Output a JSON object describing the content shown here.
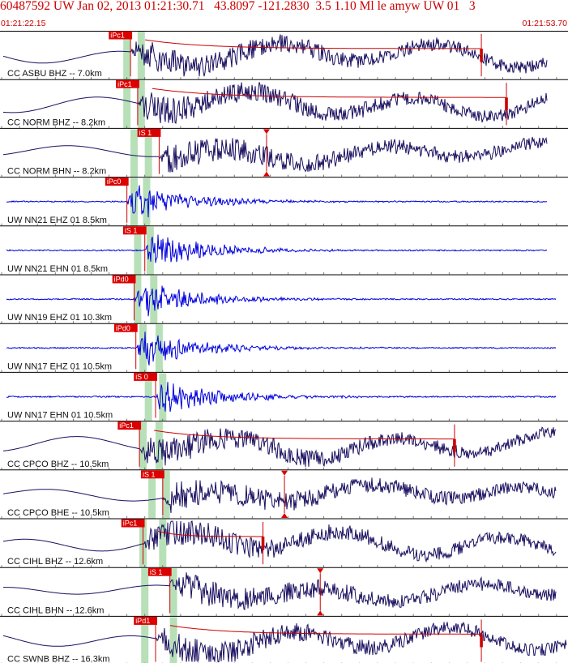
{
  "header": {
    "title": "60487592 UW Jan 02, 2013 01:21:30.71   43.8097 -121.2830  3.5 1.10 Ml le amyw UW 01   3",
    "start_time": "01:21:22.15",
    "end_time": "01:21:53.70"
  },
  "colors": {
    "header_text": "#cc0000",
    "cc_trace": "#1a1060",
    "uw_trace": "#0000dd",
    "pick_flag": "#dd0000",
    "pick_line": "#cc0000",
    "envelope": "#cc0000",
    "window_band": "#b8e0b8",
    "divider": "#000000",
    "tick": "#555555"
  },
  "chart_data": {
    "type": "line",
    "title": "60487592 UW Jan 02, 2013 01:21:30.71   43.8097 -121.2830  3.5 1.10 Ml le amyw UW 01   3",
    "x_start": "01:21:22.15",
    "x_end": "01:21:53.70",
    "duration_s": 31.55,
    "series": [
      {
        "name": "CC ASBU BHZ -- 7.0km",
        "network": "CC",
        "style": "lp",
        "pick": "iPc1",
        "pick_s": 7.2,
        "wave_end_s": 30.5,
        "band1_s": 7.0,
        "band2_s": 7.8,
        "coda_s": 26.8
      },
      {
        "name": "CC NORM BHZ -- 8.2km",
        "network": "CC",
        "style": "lp",
        "pick": "iPc1",
        "pick_s": 7.6,
        "wave_end_s": 30.5,
        "band1_s": 7.0,
        "band2_s": 7.8,
        "coda_s": 28.2
      },
      {
        "name": "CC NORM BHN -- 8.2km",
        "network": "CC",
        "style": "s",
        "pick": "iS 1",
        "pick_s": 8.8,
        "wave_end_s": 30.5,
        "band1_s": 7.4,
        "band2_s": 8.2,
        "amp_s": 14.8
      },
      {
        "name": "UW NN21 EHZ 01 8.5km",
        "network": "UW",
        "style": "hf",
        "pick": "iPc0",
        "pick_s": 7.0,
        "wave_end_s": 30.5,
        "band1_s": 7.4,
        "band2_s": 8.1
      },
      {
        "name": "UW NN21 EHN 01 8.5km",
        "network": "UW",
        "style": "hf",
        "pick": "iS 1",
        "pick_s": 8.0,
        "wave_end_s": 30.5,
        "band1_s": 7.6,
        "band2_s": 8.3
      },
      {
        "name": "UW NN19 EHZ 01 10.3km",
        "network": "UW",
        "style": "hf",
        "pick": "iPd0",
        "pick_s": 7.4,
        "wave_end_s": 31.0,
        "band1_s": 7.6,
        "band2_s": 8.5
      },
      {
        "name": "UW NN17 EHZ 01 10.5km",
        "network": "UW",
        "style": "hf",
        "pick": "iPd0",
        "pick_s": 7.5,
        "wave_end_s": 31.0,
        "band1_s": 7.9,
        "band2_s": 8.8
      },
      {
        "name": "UW NN17 EHN 01 10.5km",
        "network": "UW",
        "style": "hf",
        "pick": "iS 0",
        "pick_s": 8.6,
        "wave_end_s": 31.0,
        "band1_s": 8.2,
        "band2_s": 9.0
      },
      {
        "name": "CC CPCO BHZ -- 10.5km",
        "network": "CC",
        "style": "lp",
        "pick": "iPc1",
        "pick_s": 7.7,
        "wave_end_s": 31.0,
        "band1_s": 7.9,
        "band2_s": 8.8,
        "coda_s": 25.3
      },
      {
        "name": "CC CPCO BHE -- 10.5km",
        "network": "CC",
        "style": "s",
        "pick": "iS 1",
        "pick_s": 9.0,
        "wave_end_s": 31.0,
        "band1_s": 8.4,
        "band2_s": 9.2,
        "amp_s": 15.8
      },
      {
        "name": "CC CIHL BHZ -- 12.6km",
        "network": "CC",
        "style": "lp",
        "pick": "iPc1",
        "pick_s": 7.9,
        "wave_end_s": 31.0,
        "band1_s": 7.9,
        "band2_s": 9.0,
        "coda_s": 14.6
      },
      {
        "name": "CC CIHL BHN -- 12.6km",
        "network": "CC",
        "style": "s",
        "pick": "iS 1",
        "pick_s": 9.4,
        "wave_end_s": 31.0,
        "band1_s": 8.0,
        "band2_s": 9.6,
        "amp_s": 17.8
      },
      {
        "name": "CC SWNB BHZ -- 16.3km",
        "network": "CC",
        "style": "lp",
        "pick": "iPd1",
        "pick_s": 8.6,
        "wave_end_s": 31.55,
        "band1_s": 8.0,
        "band2_s": 9.6,
        "coda_s": 26.8
      }
    ]
  }
}
